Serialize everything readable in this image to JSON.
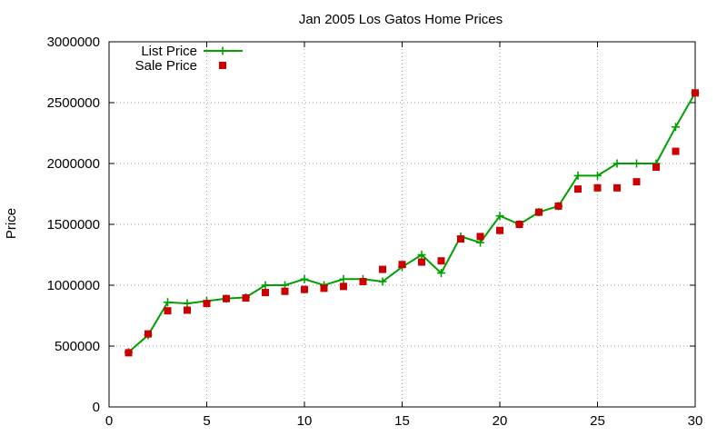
{
  "chart_data": {
    "type": "line",
    "title": "Jan 2005 Los Gatos Home Prices",
    "xlabel": "",
    "ylabel": "Price",
    "xlim": [
      0,
      30
    ],
    "ylim": [
      0,
      3000000
    ],
    "xticks": [
      0,
      5,
      10,
      15,
      20,
      25,
      30
    ],
    "yticks": [
      0,
      500000,
      1000000,
      1500000,
      2000000,
      2500000,
      3000000
    ],
    "xtick_labels": [
      "0",
      "5",
      "10",
      "15",
      "20",
      "25",
      "30"
    ],
    "ytick_labels": [
      "0",
      "500000",
      "1000000",
      "1500000",
      "2000000",
      "2500000",
      "3000000"
    ],
    "grid": true,
    "legend_position": "top-left",
    "x": [
      1,
      2,
      3,
      4,
      5,
      6,
      7,
      8,
      9,
      10,
      11,
      12,
      13,
      14,
      15,
      16,
      17,
      18,
      19,
      20,
      21,
      22,
      23,
      24,
      25,
      26,
      27,
      28,
      29,
      30
    ],
    "series": [
      {
        "name": "List Price",
        "style": "line-with-plus-markers",
        "color": "#00a000",
        "values": [
          450000,
          590000,
          860000,
          850000,
          870000,
          890000,
          900000,
          1000000,
          1000000,
          1050000,
          1000000,
          1050000,
          1050000,
          1030000,
          1150000,
          1250000,
          1100000,
          1400000,
          1350000,
          1570000,
          1500000,
          1600000,
          1650000,
          1900000,
          1900000,
          2000000,
          2000000,
          2000000,
          2300000,
          2580000
        ]
      },
      {
        "name": "Sale Price",
        "style": "square-markers",
        "color": "#cc0000",
        "values": [
          445000,
          600000,
          790000,
          795000,
          850000,
          890000,
          895000,
          940000,
          950000,
          965000,
          975000,
          990000,
          1030000,
          1130000,
          1170000,
          1190000,
          1200000,
          1380000,
          1400000,
          1450000,
          1500000,
          1600000,
          1650000,
          1790000,
          1800000,
          1800000,
          1850000,
          1970000,
          2100000,
          2580000
        ]
      }
    ]
  }
}
